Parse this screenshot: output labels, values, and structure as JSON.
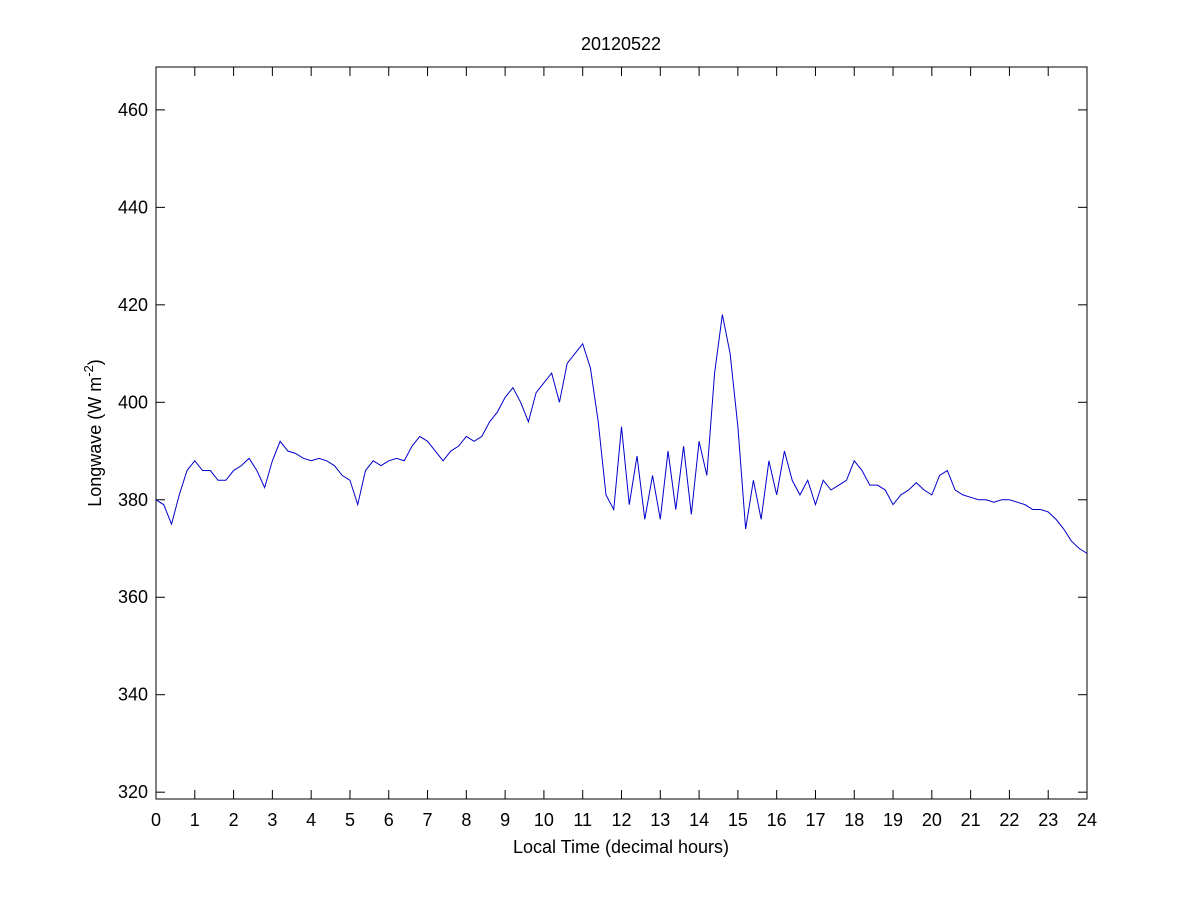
{
  "chart_data": {
    "type": "line",
    "title": "20120522",
    "xlabel": "Local Time (decimal hours)",
    "ylabel": "Longwave (W m",
    "ylabel_superscript": "-2",
    "ylabel_suffix": ")",
    "x": [
      0,
      0.2,
      0.4,
      0.6,
      0.8,
      1,
      1.2,
      1.4,
      1.6,
      1.8,
      2,
      2.2,
      2.4,
      2.6,
      2.8,
      3,
      3.2,
      3.4,
      3.6,
      3.8,
      4,
      4.2,
      4.4,
      4.6,
      4.8,
      5,
      5.2,
      5.4,
      5.6,
      5.8,
      6,
      6.2,
      6.4,
      6.6,
      6.8,
      7,
      7.2,
      7.4,
      7.6,
      7.8,
      8,
      8.2,
      8.4,
      8.6,
      8.8,
      9,
      9.2,
      9.4,
      9.6,
      9.8,
      10,
      10.2,
      10.4,
      10.6,
      10.8,
      11,
      11.2,
      11.4,
      11.6,
      11.8,
      12,
      12.2,
      12.4,
      12.6,
      12.8,
      13,
      13.2,
      13.4,
      13.6,
      13.8,
      14,
      14.2,
      14.4,
      14.6,
      14.8,
      15,
      15.2,
      15.4,
      15.6,
      15.8,
      16,
      16.2,
      16.4,
      16.6,
      16.8,
      17,
      17.2,
      17.4,
      17.6,
      17.8,
      18,
      18.2,
      18.4,
      18.6,
      18.8,
      19,
      19.2,
      19.4,
      19.6,
      19.8,
      20,
      20.2,
      20.4,
      20.6,
      20.8,
      21,
      21.2,
      21.4,
      21.6,
      21.8,
      22,
      22.2,
      22.4,
      22.6,
      22.8,
      23,
      23.2,
      23.4,
      23.6,
      23.8,
      24
    ],
    "series": [
      {
        "name": "Longwave",
        "color": "#0000cc",
        "values": [
          380,
          379,
          375,
          381,
          386,
          388,
          386,
          386,
          384,
          384,
          386,
          387,
          388.5,
          386,
          382.5,
          388,
          392,
          390,
          389.5,
          388.5,
          388,
          388.5,
          388,
          387,
          385,
          384,
          379,
          386,
          388,
          387,
          388,
          388.5,
          388,
          391,
          393,
          392,
          390,
          388,
          390,
          391,
          393,
          392,
          393,
          396,
          398,
          401,
          403,
          400,
          396,
          402,
          404,
          406,
          400,
          408,
          410,
          412,
          407,
          396,
          381,
          378,
          395,
          379,
          389,
          376,
          385,
          376,
          390,
          378,
          391,
          377,
          392,
          385,
          406,
          418,
          410,
          395,
          374,
          384,
          376,
          388,
          381,
          390,
          384,
          381,
          384,
          379,
          384,
          382,
          383,
          384,
          388,
          386,
          383,
          383,
          382,
          379,
          381,
          382,
          383.5,
          382,
          381,
          385,
          386,
          382,
          381,
          380.5,
          380,
          380,
          379.5,
          380,
          380,
          379.5,
          379,
          378,
          378,
          377.5,
          376,
          374,
          371.5,
          370,
          369
        ]
      }
    ],
    "xlim": [
      0,
      24
    ],
    "xticks": [
      0,
      1,
      2,
      3,
      4,
      5,
      6,
      7,
      8,
      9,
      10,
      11,
      12,
      13,
      14,
      15,
      16,
      17,
      18,
      19,
      20,
      21,
      22,
      23,
      24
    ],
    "ylim": [
      318.6,
      468.8
    ],
    "yticks": [
      320,
      340,
      360,
      380,
      400,
      420,
      440,
      460
    ],
    "grid": false
  }
}
